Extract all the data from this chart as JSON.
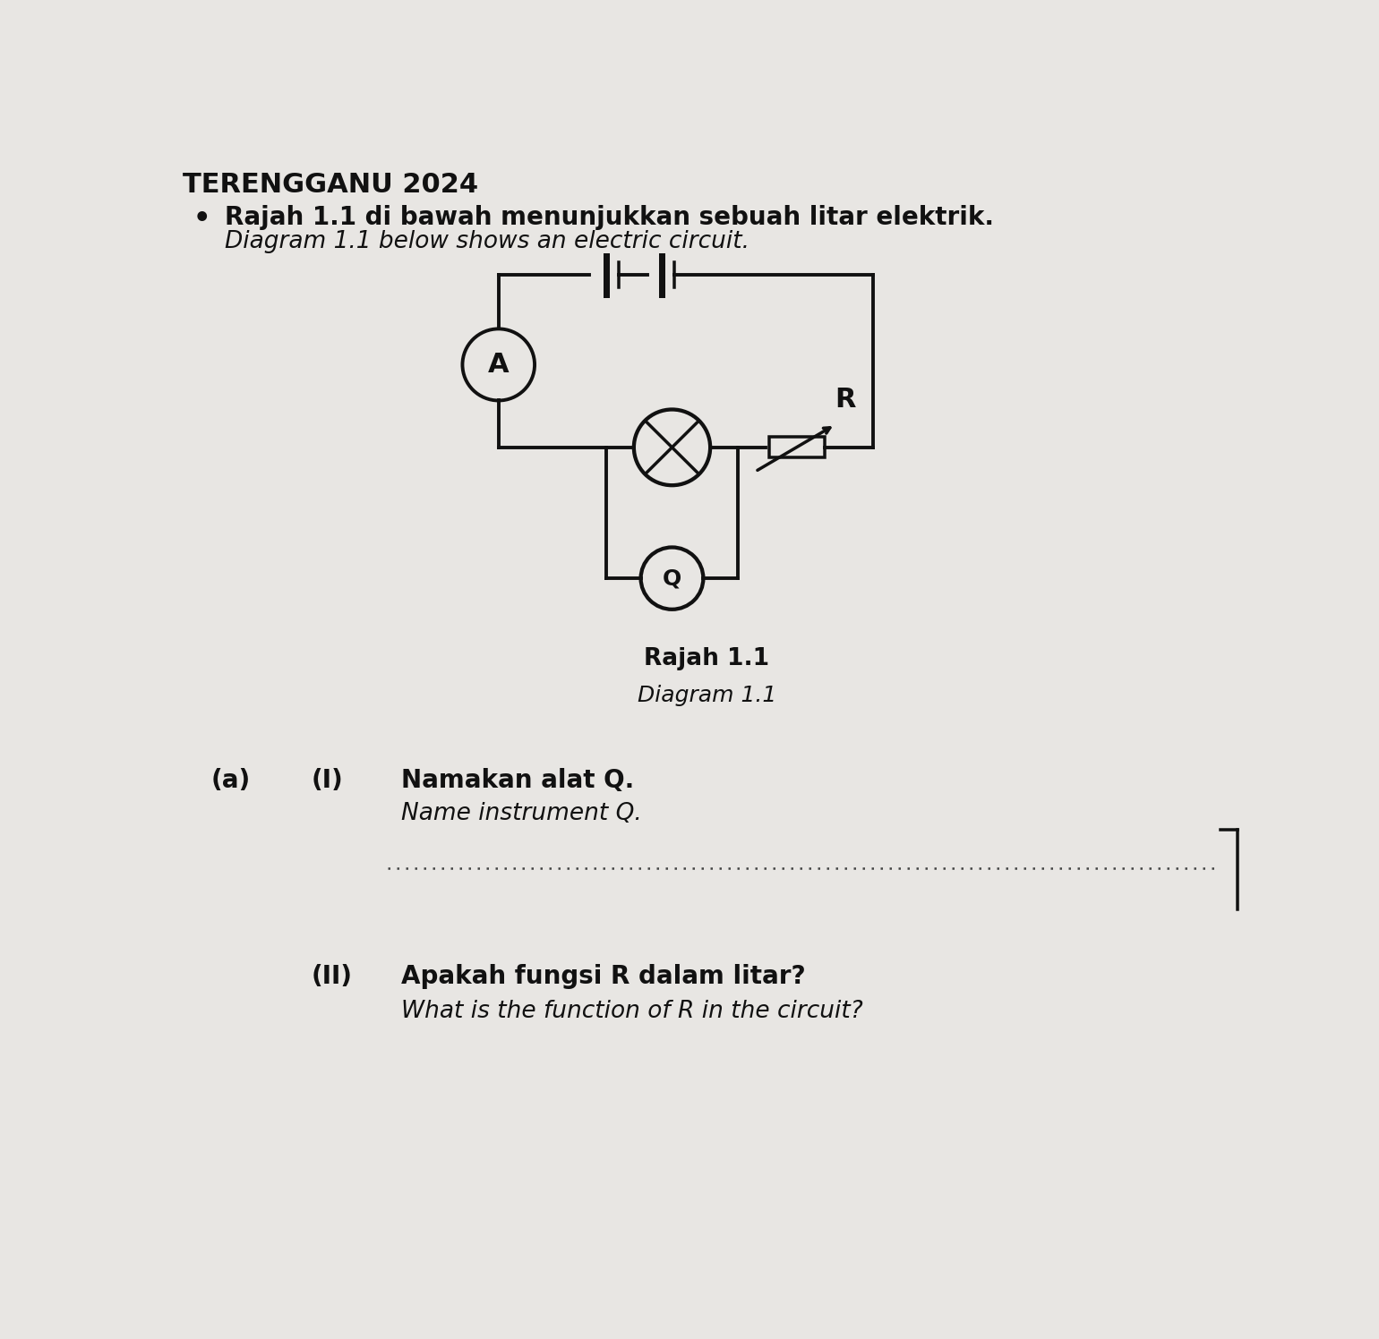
{
  "bg_color": "#e8e6e3",
  "title": "TERENGGANU 2024",
  "bullet": "•",
  "line1_bold": "Rajah 1.1 di bawah menunjukkan sebuah litar elektrik.",
  "line1_italic": "Diagram 1.1 below shows an electric circuit.",
  "caption_bold": "Rajah 1.1",
  "caption_italic": "Diagram 1.1",
  "qa_label": "(a)",
  "qi_label": "(I)",
  "qii_label": "(II)",
  "q1_bold": "Namakan alat Q.",
  "q1_italic": "Name instrument Q.",
  "q2_bold": "Apakah fungsi R dalam litar?",
  "q2_italic": "What is the function of R in the circuit?",
  "text_color": "#111111",
  "circuit_color": "#111111",
  "circuit_lw": 2.8
}
